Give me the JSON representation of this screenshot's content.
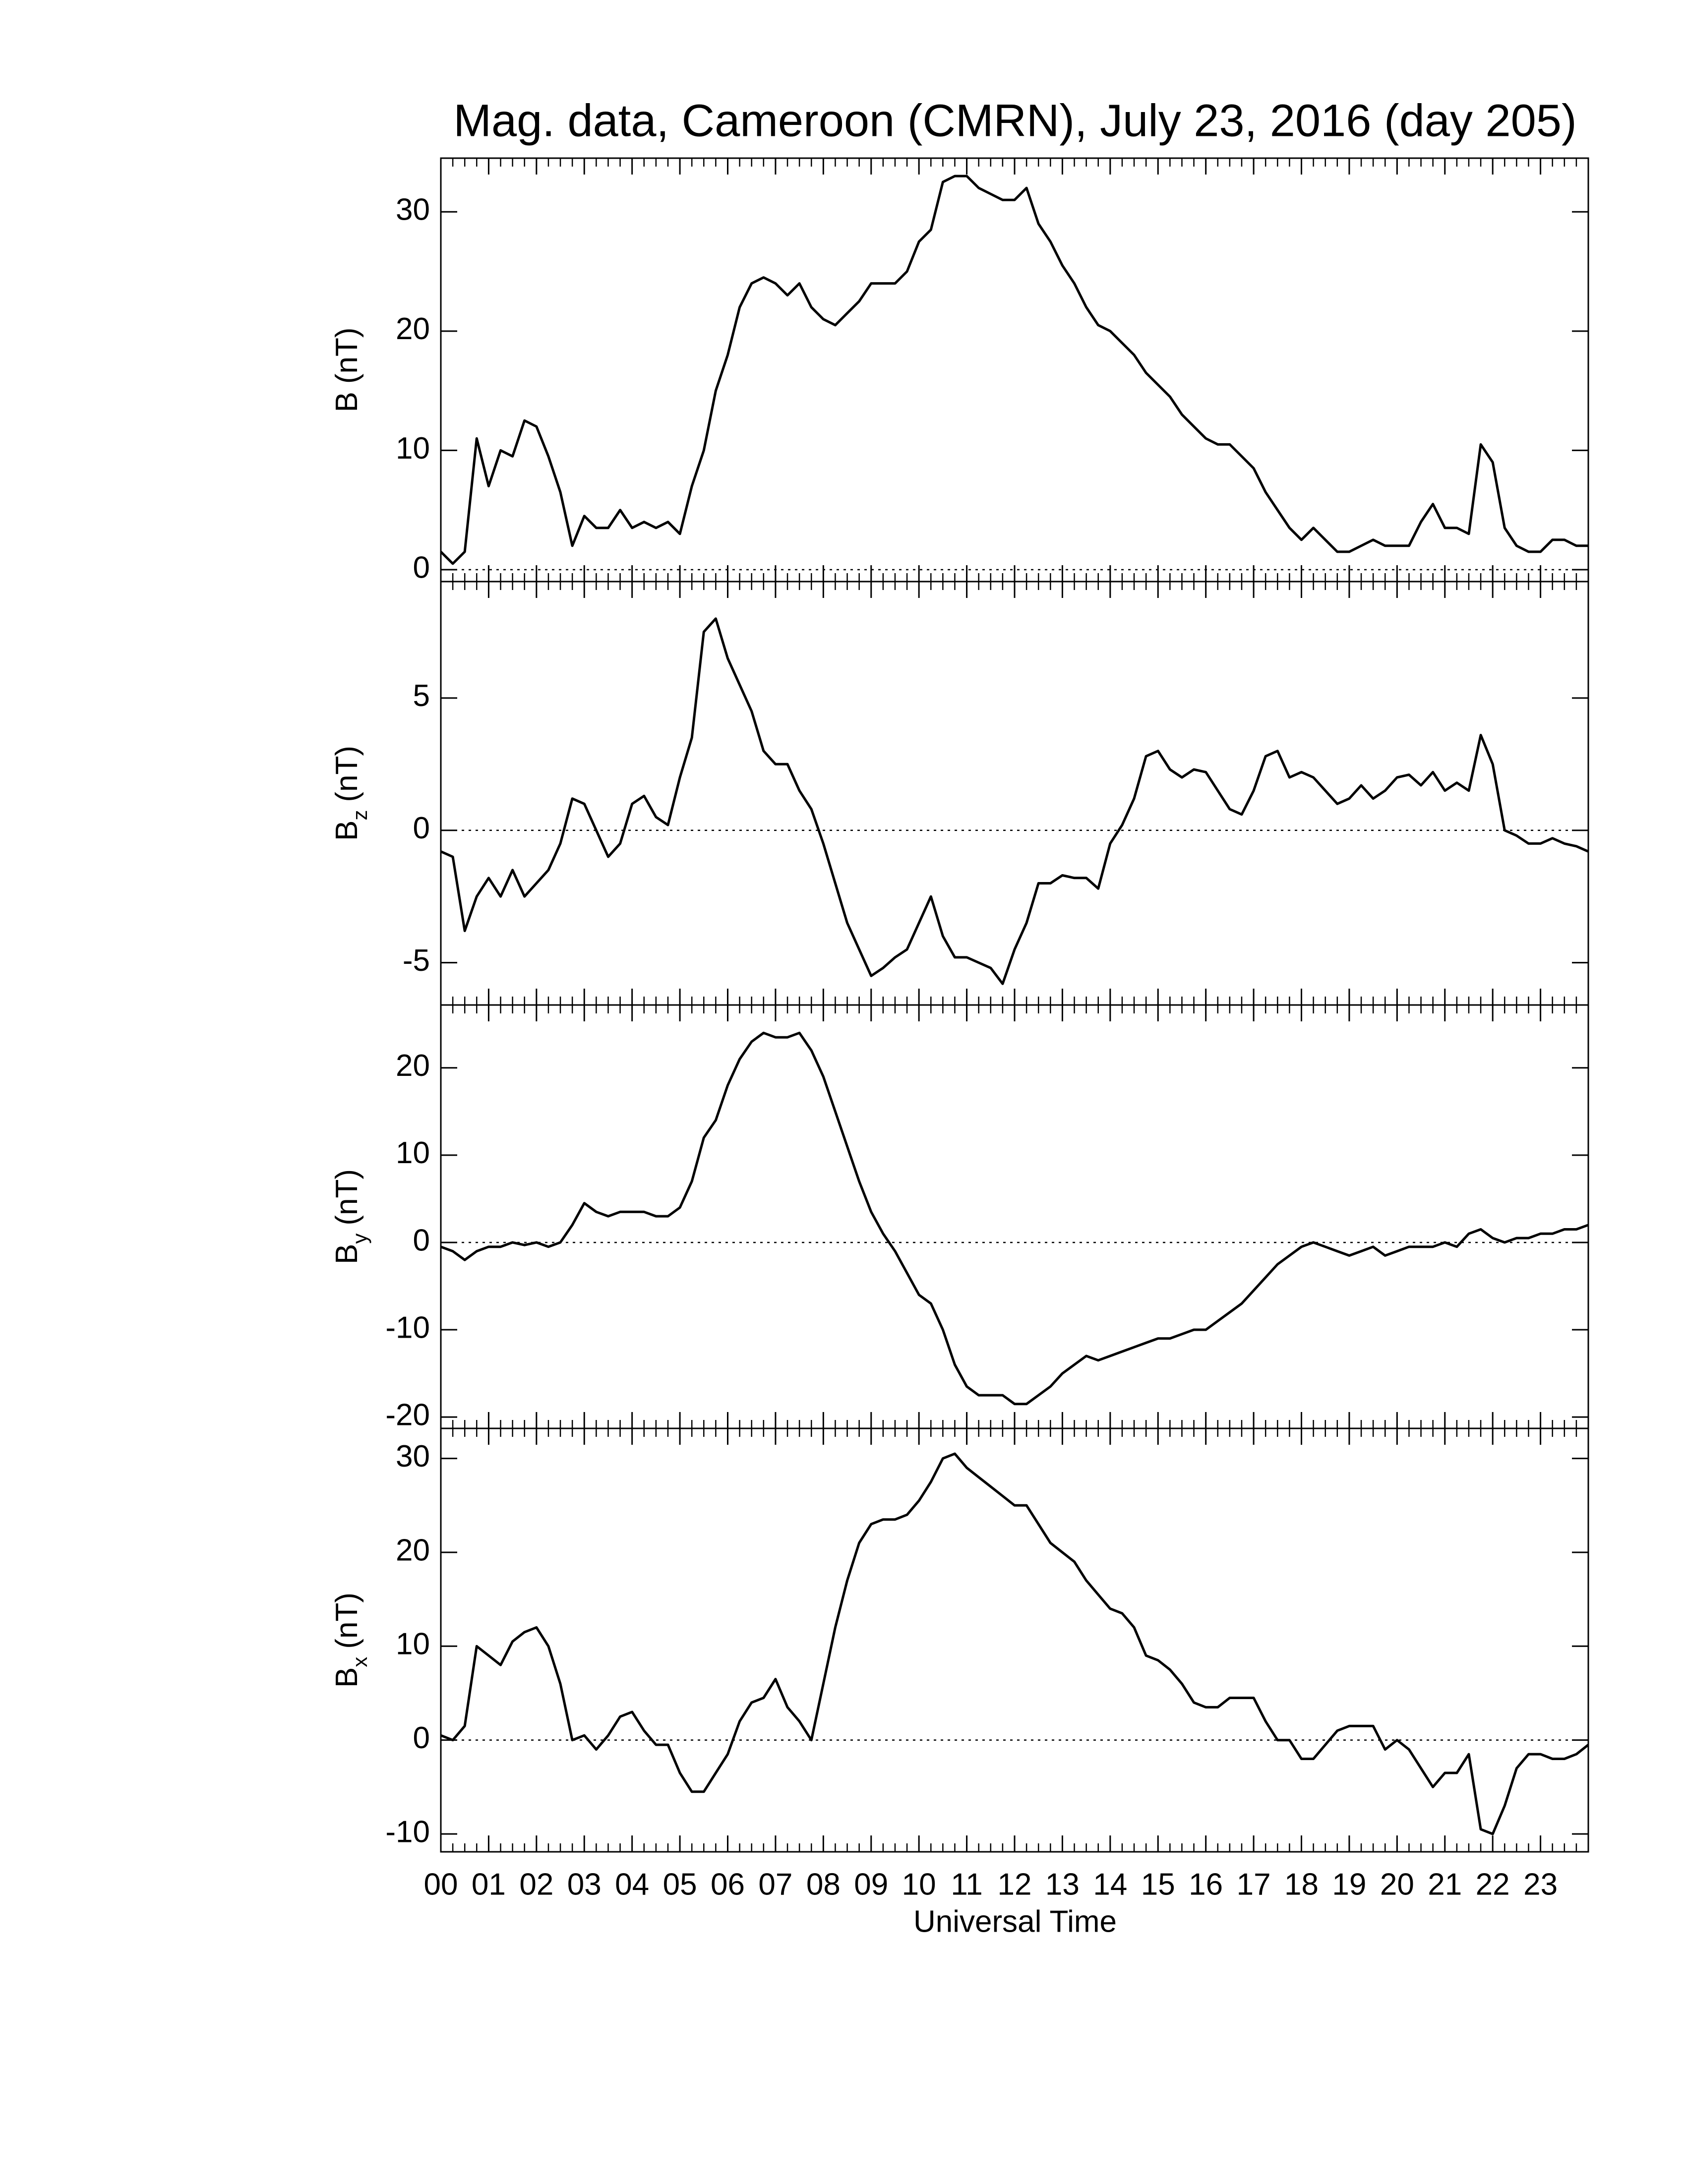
{
  "chart_data": {
    "type": "line",
    "title": "Mag. data, Cameroon (CMRN), July 23, 2016 (day 205)",
    "xlabel": "Universal Time",
    "color": "#000000",
    "xlim": [
      0,
      24
    ],
    "xminor_step": 0.25,
    "xticks": [
      {
        "value": 0,
        "label": "00"
      },
      {
        "value": 1,
        "label": "01"
      },
      {
        "value": 2,
        "label": "02"
      },
      {
        "value": 3,
        "label": "03"
      },
      {
        "value": 4,
        "label": "04"
      },
      {
        "value": 5,
        "label": "05"
      },
      {
        "value": 6,
        "label": "06"
      },
      {
        "value": 7,
        "label": "07"
      },
      {
        "value": 8,
        "label": "08"
      },
      {
        "value": 9,
        "label": "09"
      },
      {
        "value": 10,
        "label": "10"
      },
      {
        "value": 11,
        "label": "11"
      },
      {
        "value": 12,
        "label": "12"
      },
      {
        "value": 13,
        "label": "13"
      },
      {
        "value": 14,
        "label": "14"
      },
      {
        "value": 15,
        "label": "15"
      },
      {
        "value": 16,
        "label": "16"
      },
      {
        "value": 17,
        "label": "17"
      },
      {
        "value": 18,
        "label": "18"
      },
      {
        "value": 19,
        "label": "19"
      },
      {
        "value": 20,
        "label": "20"
      },
      {
        "value": 21,
        "label": "21"
      },
      {
        "value": 22,
        "label": "22"
      },
      {
        "value": 23,
        "label": "23"
      }
    ],
    "x": [
      0,
      0.25,
      0.5,
      0.75,
      1,
      1.25,
      1.5,
      1.75,
      2,
      2.25,
      2.5,
      2.75,
      3,
      3.25,
      3.5,
      3.75,
      4,
      4.25,
      4.5,
      4.75,
      5,
      5.25,
      5.5,
      5.75,
      6,
      6.25,
      6.5,
      6.75,
      7,
      7.25,
      7.5,
      7.75,
      8,
      8.25,
      8.5,
      8.75,
      9,
      9.25,
      9.5,
      9.75,
      10,
      10.25,
      10.5,
      10.75,
      11,
      11.25,
      11.5,
      11.75,
      12,
      12.25,
      12.5,
      12.75,
      13,
      13.25,
      13.5,
      13.75,
      14,
      14.25,
      14.5,
      14.75,
      15,
      15.25,
      15.5,
      15.75,
      16,
      16.25,
      16.5,
      16.75,
      17,
      17.25,
      17.5,
      17.75,
      18,
      18.25,
      18.5,
      18.75,
      19,
      19.25,
      19.5,
      19.75,
      20,
      20.25,
      20.5,
      20.75,
      21,
      21.25,
      21.5,
      21.75,
      22,
      22.25,
      22.5,
      22.75,
      23,
      23.25,
      23.5,
      23.75,
      24
    ],
    "panels": [
      {
        "ylabel": "B",
        "ylabel_unit": "(nT)",
        "ylim": [
          -1,
          34.5
        ],
        "yticks": [
          0,
          10,
          20,
          30
        ],
        "reference_line": 0,
        "values": [
          1.5,
          0.5,
          1.5,
          11,
          7,
          10,
          9.5,
          12.5,
          12,
          9.5,
          6.5,
          2,
          4.5,
          3.5,
          3.5,
          5,
          3.5,
          4,
          3.5,
          4,
          3,
          7,
          10,
          15,
          18,
          22,
          24,
          24.5,
          24,
          23,
          24,
          22,
          21,
          20.5,
          21.5,
          22.5,
          24,
          24,
          24,
          25,
          27.5,
          28.5,
          32.5,
          33,
          33,
          32,
          31.5,
          31,
          31,
          32,
          29,
          27.5,
          25.5,
          24,
          22,
          20.5,
          20,
          19,
          18,
          16.5,
          15.5,
          14.5,
          13,
          12,
          11,
          10.5,
          10.5,
          9.5,
          8.5,
          6.5,
          5,
          3.5,
          2.5,
          3.5,
          2.5,
          1.5,
          1.5,
          2,
          2.5,
          2,
          2,
          2,
          4,
          5.5,
          3.5,
          3.5,
          3,
          10.5,
          9,
          3.5,
          2,
          1.5,
          1.5,
          2.5,
          2.5,
          2,
          2
        ]
      },
      {
        "ylabel": "B",
        "ylabel_sub": "z",
        "ylabel_unit": "(nT)",
        "ylim": [
          -6.6,
          9.4
        ],
        "yticks": [
          -5,
          0,
          5
        ],
        "reference_line": 0,
        "values": [
          -0.8,
          -1,
          -3.8,
          -2.5,
          -1.8,
          -2.5,
          -1.5,
          -2.5,
          -2,
          -1.5,
          -0.5,
          1.2,
          1,
          0,
          -1,
          -0.5,
          1,
          1.3,
          0.5,
          0.2,
          2,
          3.5,
          7.5,
          8,
          6.5,
          5.5,
          4.5,
          3,
          2.5,
          2.5,
          1.5,
          0.8,
          -0.5,
          -2,
          -3.5,
          -4.5,
          -5.5,
          -5.2,
          -4.8,
          -4.5,
          -3.5,
          -2.5,
          -4,
          -4.8,
          -4.8,
          -5,
          -5.2,
          -5.8,
          -4.5,
          -3.5,
          -2,
          -2,
          -1.7,
          -1.8,
          -1.8,
          -2.2,
          -0.5,
          0.2,
          1.2,
          2.8,
          3,
          2.3,
          2,
          2.3,
          2.2,
          1.5,
          0.8,
          0.6,
          1.5,
          2.8,
          3,
          2,
          2.2,
          2,
          1.5,
          1,
          1.2,
          1.7,
          1.2,
          1.5,
          2,
          2.1,
          1.7,
          2.2,
          1.5,
          1.8,
          1.5,
          3.6,
          2.5,
          0,
          -0.2,
          -0.5,
          -0.5,
          -0.3,
          -0.5,
          -0.6,
          -0.8
        ]
      },
      {
        "ylabel": "B",
        "ylabel_sub": "y",
        "ylabel_unit": "(nT)",
        "ylim": [
          -21.3,
          27.2
        ],
        "yticks": [
          -20,
          -10,
          0,
          10,
          20
        ],
        "reference_line": 0,
        "values": [
          -0.5,
          -1,
          -2,
          -1,
          -0.5,
          -0.5,
          0,
          -0.3,
          0,
          -0.5,
          0,
          2,
          4.5,
          3.5,
          3,
          3.5,
          3.5,
          3.5,
          3,
          3,
          4,
          7,
          12,
          14,
          18,
          21,
          23,
          24,
          23.5,
          23.5,
          24,
          22,
          19,
          15,
          11,
          7,
          3.5,
          1,
          -1,
          -3.5,
          -6,
          -7,
          -10,
          -14,
          -16.5,
          -17.5,
          -17.5,
          -17.5,
          -18.5,
          -18.5,
          -17.5,
          -16.5,
          -15,
          -14,
          -13,
          -13.5,
          -13,
          -12.5,
          -12,
          -11.5,
          -11,
          -11,
          -10.5,
          -10,
          -10,
          -9,
          -8,
          -7,
          -5.5,
          -4,
          -2.5,
          -1.5,
          -0.5,
          0,
          -0.5,
          -1,
          -1.5,
          -1,
          -0.5,
          -1.5,
          -1,
          -0.5,
          -0.5,
          -0.5,
          0,
          -0.5,
          1,
          1.5,
          0.5,
          0,
          0.5,
          0.5,
          1,
          1,
          1.5,
          1.5,
          2
        ]
      },
      {
        "ylabel": "B",
        "ylabel_sub": "x",
        "ylabel_unit": "(nT)",
        "ylim": [
          -11.9,
          33.2
        ],
        "yticks": [
          -10,
          0,
          10,
          20,
          30
        ],
        "reference_line": 0,
        "values": [
          0.5,
          0,
          1.5,
          10,
          9,
          8,
          10.5,
          11.5,
          12,
          10,
          6,
          0,
          0.5,
          -1,
          0.5,
          2.5,
          3,
          1,
          -0.5,
          -0.5,
          -3.5,
          -5.5,
          -5.5,
          -3.5,
          -1.5,
          2,
          4,
          4.5,
          6.5,
          3.5,
          2,
          0,
          6,
          12,
          17,
          21,
          23,
          23.5,
          23.5,
          24,
          25.5,
          27.5,
          30,
          30.5,
          29,
          28,
          27,
          26,
          25,
          25,
          23,
          21,
          20,
          19,
          17,
          15.5,
          14,
          13.5,
          12,
          9,
          8.5,
          7.5,
          6,
          4,
          3.5,
          3.5,
          4.5,
          4.5,
          4.5,
          2,
          0,
          0,
          -2,
          -2,
          -0.5,
          1,
          1.5,
          1.5,
          1.5,
          -1,
          0,
          -1,
          -3,
          -5,
          -3.5,
          -3.5,
          -1.5,
          -9.5,
          -10,
          -7,
          -3,
          -1.5,
          -1.5,
          -2,
          -2,
          -1.5,
          -0.5
        ]
      }
    ]
  }
}
